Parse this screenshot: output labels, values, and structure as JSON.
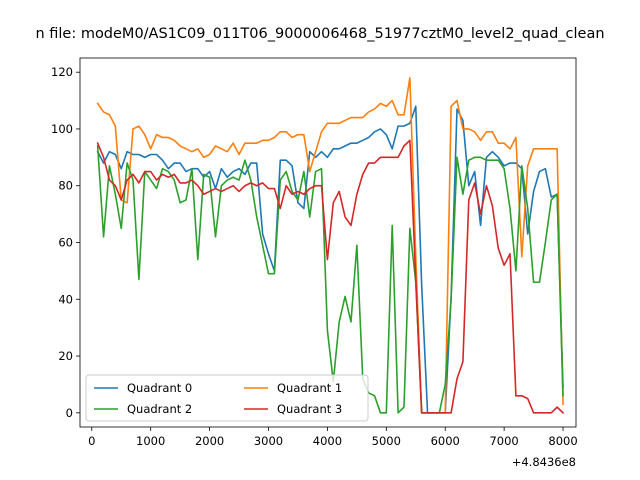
{
  "chart_data": {
    "type": "line",
    "title": "n file: modeM0/AS1C09_011T06_9000006468_51977cztM0_level2_quad_clean",
    "xlabel": "",
    "ylabel": "",
    "x_offset_label": "+4.8436e8",
    "xlim": [
      -200,
      8220
    ],
    "ylim": [
      -5,
      125
    ],
    "xticks": [
      0,
      1000,
      2000,
      3000,
      4000,
      5000,
      6000,
      7000,
      8000
    ],
    "xtick_labels": [
      "0",
      "1000",
      "2000",
      "3000",
      "4000",
      "5000",
      "6000",
      "7000",
      "8000"
    ],
    "yticks": [
      0,
      20,
      40,
      60,
      80,
      100,
      120
    ],
    "ytick_labels": [
      "0",
      "20",
      "40",
      "60",
      "80",
      "100",
      "120"
    ],
    "grid": false,
    "legend": {
      "placement": "lower-left",
      "columns": 2
    },
    "series": [
      {
        "name": "Quadrant 0",
        "color": "#1f77b4",
        "x": [
          100,
          200,
          300,
          400,
          500,
          600,
          700,
          800,
          900,
          1000,
          1100,
          1200,
          1300,
          1400,
          1500,
          1600,
          1700,
          1800,
          1900,
          2000,
          2100,
          2200,
          2300,
          2400,
          2500,
          2600,
          2700,
          2800,
          2900,
          3000,
          3100,
          3200,
          3300,
          3400,
          3500,
          3600,
          3700,
          3800,
          3900,
          4000,
          4100,
          4200,
          4300,
          4400,
          4500,
          4600,
          4700,
          4800,
          4900,
          5000,
          5100,
          5200,
          5300,
          5400,
          5500,
          5600,
          5700,
          5800,
          5900,
          6000,
          6100,
          6200,
          6300,
          6400,
          6500,
          6600,
          6700,
          6800,
          6900,
          7000,
          7100,
          7200,
          7300,
          7400,
          7500,
          7600,
          7700,
          7800,
          7900,
          8000
        ],
        "y": [
          92,
          88,
          92,
          91,
          86,
          92,
          91,
          91,
          90,
          91,
          91,
          89,
          86,
          88,
          88,
          85,
          86,
          86,
          83,
          85,
          79,
          86,
          83,
          85,
          86,
          84,
          88,
          88,
          63,
          56,
          50,
          89,
          89,
          87,
          74,
          72,
          92,
          90,
          92,
          90,
          93,
          93,
          94,
          95,
          95,
          96,
          97,
          99,
          100,
          98,
          93,
          101,
          101,
          102,
          108,
          45,
          0,
          0,
          0,
          0,
          41,
          107,
          103,
          80,
          85,
          66,
          90,
          92,
          90,
          87,
          88,
          88,
          86,
          63,
          78,
          85,
          86,
          76,
          77,
          9
        ]
      },
      {
        "name": "Quadrant 1",
        "color": "#ff7f0e",
        "x": [
          100,
          200,
          300,
          400,
          500,
          600,
          700,
          800,
          900,
          1000,
          1100,
          1200,
          1300,
          1400,
          1500,
          1600,
          1700,
          1800,
          1900,
          2000,
          2100,
          2200,
          2300,
          2400,
          2500,
          2600,
          2700,
          2800,
          2900,
          3000,
          3100,
          3200,
          3300,
          3400,
          3500,
          3600,
          3700,
          3800,
          3900,
          4000,
          4100,
          4200,
          4300,
          4400,
          4500,
          4600,
          4700,
          4800,
          4900,
          5000,
          5100,
          5200,
          5300,
          5400,
          5500,
          5600,
          5700,
          5800,
          5900,
          6000,
          6100,
          6200,
          6300,
          6400,
          6500,
          6600,
          6700,
          6800,
          6900,
          7000,
          7100,
          7200,
          7300,
          7400,
          7500,
          7600,
          7700,
          7800,
          7900,
          8000
        ],
        "y": [
          109,
          106,
          105,
          101,
          75,
          74,
          100,
          101,
          98,
          93,
          98,
          97,
          97,
          96,
          94,
          93,
          92,
          93,
          90,
          91,
          94,
          93,
          92,
          95,
          91,
          95,
          95,
          95,
          96,
          96,
          97,
          99,
          99,
          97,
          98,
          98,
          85,
          92,
          99,
          102,
          102,
          102,
          103,
          104,
          104,
          104,
          106,
          107,
          109,
          108,
          110,
          105,
          105,
          118,
          55,
          0,
          0,
          0,
          0,
          0,
          108,
          110,
          100,
          100,
          99,
          96,
          99,
          99,
          95,
          95,
          93,
          97,
          55,
          87,
          93,
          93,
          93,
          93,
          93,
          3
        ]
      },
      {
        "name": "Quadrant 2",
        "color": "#2ca02c",
        "x": [
          100,
          200,
          300,
          400,
          500,
          600,
          700,
          800,
          900,
          1000,
          1100,
          1200,
          1300,
          1400,
          1500,
          1600,
          1700,
          1800,
          1900,
          2000,
          2100,
          2200,
          2300,
          2400,
          2500,
          2600,
          2700,
          2800,
          2900,
          3000,
          3100,
          3200,
          3300,
          3400,
          3500,
          3600,
          3700,
          3800,
          3900,
          4000,
          4100,
          4200,
          4300,
          4400,
          4500,
          4600,
          4700,
          4800,
          4900,
          5000,
          5100,
          5200,
          5300,
          5400,
          5500,
          5600,
          5700,
          5800,
          5900,
          6000,
          6100,
          6200,
          6300,
          6400,
          6500,
          6600,
          6700,
          6800,
          6900,
          7000,
          7100,
          7200,
          7300,
          7400,
          7500,
          7600,
          7700,
          7800,
          7900,
          8000
        ],
        "y": [
          94,
          62,
          87,
          77,
          65,
          88,
          82,
          47,
          85,
          82,
          79,
          86,
          85,
          82,
          74,
          75,
          86,
          54,
          84,
          83,
          62,
          80,
          82,
          83,
          82,
          89,
          82,
          69,
          59,
          49,
          49,
          82,
          85,
          78,
          75,
          85,
          69,
          85,
          86,
          29,
          11,
          32,
          41,
          32,
          59,
          12,
          7,
          6,
          0,
          0,
          66,
          0,
          2,
          65,
          46,
          0,
          0,
          0,
          0,
          10,
          40,
          90,
          77,
          89,
          90,
          90,
          89,
          89,
          89,
          86,
          72,
          50,
          87,
          72,
          46,
          46,
          60,
          75,
          77,
          6
        ]
      },
      {
        "name": "Quadrant 3",
        "color": "#d62728",
        "x": [
          100,
          200,
          300,
          400,
          500,
          600,
          700,
          800,
          900,
          1000,
          1100,
          1200,
          1300,
          1400,
          1500,
          1600,
          1700,
          1800,
          1900,
          2000,
          2100,
          2200,
          2300,
          2400,
          2500,
          2600,
          2700,
          2800,
          2900,
          3000,
          3100,
          3200,
          3300,
          3400,
          3500,
          3600,
          3700,
          3800,
          3900,
          4000,
          4100,
          4200,
          4300,
          4400,
          4500,
          4600,
          4700,
          4800,
          4900,
          5000,
          5100,
          5200,
          5300,
          5400,
          5500,
          5600,
          5700,
          5800,
          5900,
          6000,
          6100,
          6200,
          6300,
          6400,
          6500,
          6600,
          6700,
          6800,
          6900,
          7000,
          7100,
          7200,
          7300,
          7400,
          7500,
          7600,
          7700,
          7800,
          7900,
          8000
        ],
        "y": [
          95,
          90,
          82,
          80,
          75,
          82,
          84,
          81,
          85,
          85,
          82,
          84,
          83,
          84,
          81,
          81,
          82,
          80,
          77,
          78,
          79,
          78,
          79,
          80,
          78,
          80,
          81,
          80,
          81,
          79,
          79,
          72,
          80,
          77,
          78,
          77,
          79,
          80,
          80,
          54,
          74,
          78,
          69,
          66,
          77,
          84,
          88,
          88,
          90,
          90,
          90,
          90,
          94,
          96,
          47,
          0,
          0,
          0,
          0,
          0,
          0,
          12,
          18,
          75,
          81,
          70,
          80,
          73,
          58,
          52,
          56,
          6,
          6,
          5,
          0,
          0,
          0,
          0,
          2,
          0
        ]
      }
    ]
  }
}
